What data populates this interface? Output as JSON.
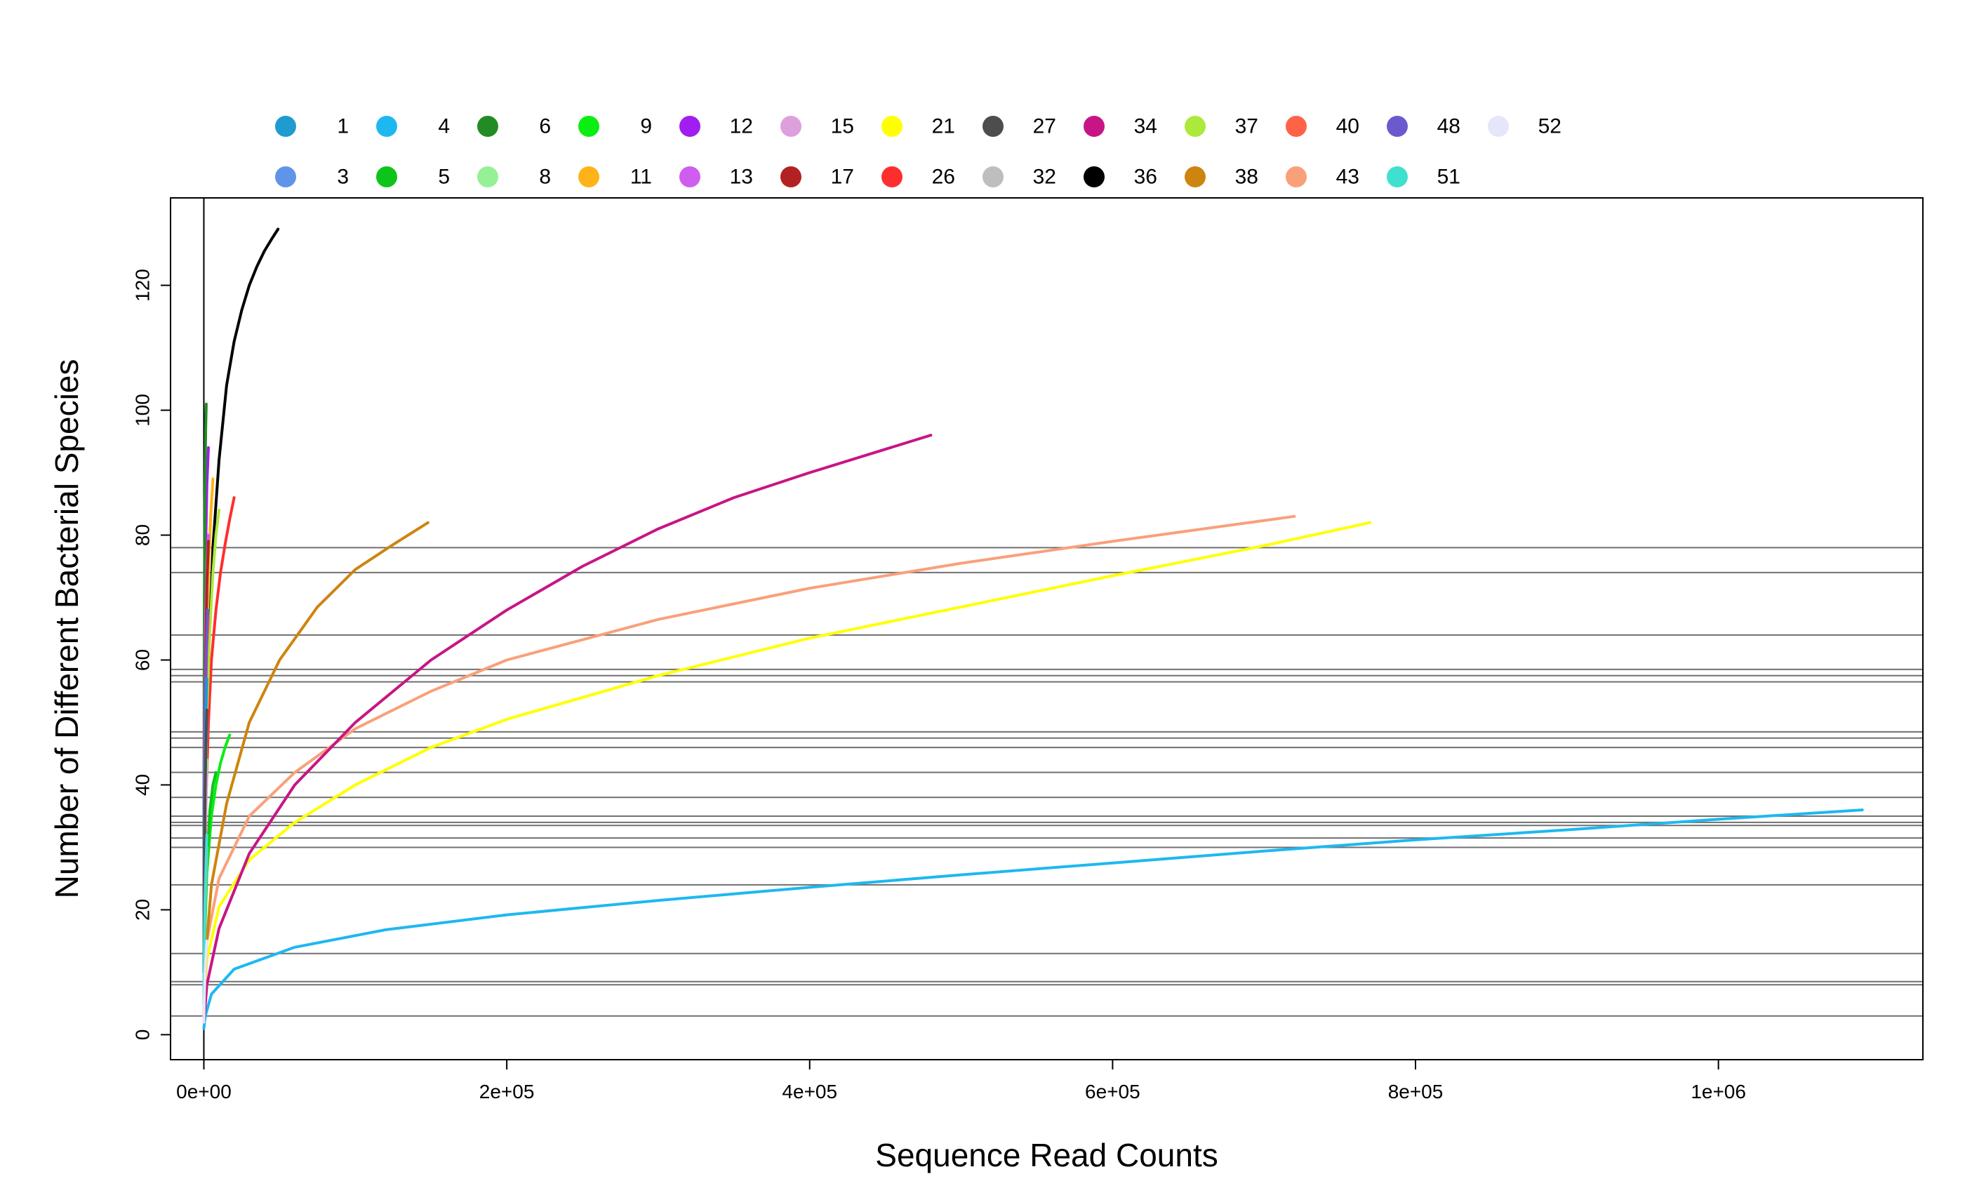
{
  "chart_data": {
    "type": "line",
    "title": "",
    "xlabel": "Sequence Read Counts",
    "ylabel": "Number of Different Bacterial Species",
    "xlim": [
      -22000,
      1135000
    ],
    "ylim": [
      -4,
      134
    ],
    "x_ticks": [
      {
        "value": 0,
        "label": "0e+00"
      },
      {
        "value": 200000,
        "label": "2e+05"
      },
      {
        "value": 400000,
        "label": "4e+05"
      },
      {
        "value": 600000,
        "label": "6e+05"
      },
      {
        "value": 800000,
        "label": "8e+05"
      },
      {
        "value": 1000000,
        "label": "1e+06"
      }
    ],
    "y_ticks": [
      {
        "value": 0,
        "label": "0"
      },
      {
        "value": 20,
        "label": "20"
      },
      {
        "value": 40,
        "label": "40"
      },
      {
        "value": 60,
        "label": "60"
      },
      {
        "value": 80,
        "label": "80"
      },
      {
        "value": 100,
        "label": "100"
      },
      {
        "value": 120,
        "label": "120"
      }
    ],
    "vertical_reference_line": 0,
    "horizontal_reference_lines": [
      3,
      8,
      8.5,
      13,
      24,
      30,
      31.5,
      33.5,
      34,
      35,
      38,
      42,
      46,
      47.5,
      48.5,
      56.5,
      57.5,
      58.5,
      64,
      74,
      78
    ],
    "legend": {
      "placement": "top",
      "rows": 2,
      "entries": [
        {
          "label": "1",
          "color": "#1F9BCF"
        },
        {
          "label": "3",
          "color": "#5F95E8"
        },
        {
          "label": "4",
          "color": "#1EB8F0"
        },
        {
          "label": "5",
          "color": "#0EC41A"
        },
        {
          "label": "6",
          "color": "#238B23"
        },
        {
          "label": "8",
          "color": "#96F196"
        },
        {
          "label": "9",
          "color": "#0AEE12"
        },
        {
          "label": "11",
          "color": "#FFB21A"
        },
        {
          "label": "12",
          "color": "#A01EF0"
        },
        {
          "label": "13",
          "color": "#CF5DF0"
        },
        {
          "label": "15",
          "color": "#DDA0DD"
        },
        {
          "label": "17",
          "color": "#B22222"
        },
        {
          "label": "21",
          "color": "#FFFF00"
        },
        {
          "label": "26",
          "color": "#FF2E2E"
        },
        {
          "label": "27",
          "color": "#4D4D4D"
        },
        {
          "label": "32",
          "color": "#BEBEBE"
        },
        {
          "label": "34",
          "color": "#C71585"
        },
        {
          "label": "36",
          "color": "#000000"
        },
        {
          "label": "37",
          "color": "#ADE93A"
        },
        {
          "label": "38",
          "color": "#CD850F"
        },
        {
          "label": "40",
          "color": "#FF6347"
        },
        {
          "label": "43",
          "color": "#F9A07A"
        },
        {
          "label": "48",
          "color": "#6A5ACD"
        },
        {
          "label": "51",
          "color": "#40E0D0"
        },
        {
          "label": "52",
          "color": "#E6E6FA"
        }
      ]
    },
    "series": [
      {
        "color": "#1EB8F0",
        "x": [
          0,
          1000,
          5000,
          20000,
          60000,
          120000,
          200000,
          300000,
          400000,
          500000,
          600000,
          700000,
          800000,
          900000,
          1000000,
          1095000
        ],
        "y": [
          1,
          3,
          6.5,
          10.5,
          14,
          16.8,
          19.2,
          21.5,
          23.6,
          25.6,
          27.5,
          29.4,
          31.2,
          32.8,
          34.5,
          36
        ]
      },
      {
        "color": "#FFFF00",
        "x": [
          0,
          2000,
          10000,
          30000,
          60000,
          100000,
          150000,
          200000,
          300000,
          400000,
          500000,
          600000,
          700000,
          770000
        ],
        "y": [
          5,
          12,
          20.5,
          28,
          34,
          40,
          46,
          50.5,
          57.5,
          63.5,
          68.5,
          73.5,
          78.3,
          82
        ]
      },
      {
        "color": "#F9A07A",
        "x": [
          0,
          2000,
          10000,
          30000,
          60000,
          100000,
          150000,
          200000,
          300000,
          400000,
          500000,
          600000,
          720000
        ],
        "y": [
          5,
          15,
          25,
          35,
          42,
          49,
          55,
          60,
          66.5,
          71.5,
          75.5,
          79,
          83
        ]
      },
      {
        "color": "#C71585",
        "x": [
          0,
          2000,
          10000,
          30000,
          60000,
          100000,
          150000,
          200000,
          250000,
          300000,
          350000,
          400000,
          480000
        ],
        "y": [
          2,
          8,
          17,
          29,
          40,
          50,
          60,
          68,
          75,
          81,
          86,
          90,
          96
        ]
      },
      {
        "color": "#CD850F",
        "x": [
          0,
          1000,
          5000,
          15000,
          30000,
          50000,
          75000,
          100000,
          125000,
          148000
        ],
        "y": [
          3,
          12,
          24,
          37,
          50,
          60,
          68.5,
          74.5,
          78.5,
          82
        ]
      },
      {
        "color": "#000000",
        "x": [
          0,
          1000,
          3000,
          6000,
          10000,
          15000,
          20000,
          25000,
          30000,
          35000,
          40000,
          45000,
          49000
        ],
        "y": [
          10,
          40,
          60,
          78,
          92,
          104,
          111,
          116,
          120,
          123,
          125.5,
          127.5,
          129
        ]
      },
      {
        "color": "#FF2E2E",
        "x": [
          0,
          500,
          1500,
          3000,
          5000,
          8000,
          11000,
          14000,
          17000,
          20000
        ],
        "y": [
          10,
          24,
          38,
          50,
          60,
          68,
          74,
          78.5,
          82.5,
          86
        ]
      },
      {
        "color": "#0AEE12",
        "x": [
          0,
          500,
          2000,
          5000,
          8000,
          11000,
          14000,
          17000
        ],
        "y": [
          5,
          15,
          26,
          35,
          40,
          43.5,
          46,
          48
        ]
      },
      {
        "color": "#0EC41A",
        "x": [
          0,
          500,
          2000,
          4000,
          6000,
          8000
        ],
        "y": [
          5,
          16,
          28,
          36,
          40,
          42
        ]
      },
      {
        "color": "#ADE93A",
        "x": [
          0,
          500,
          2000,
          4000,
          6000,
          8000,
          10000
        ],
        "y": [
          10,
          30,
          52,
          65,
          74,
          80,
          84
        ]
      },
      {
        "color": "#FFB21A",
        "x": [
          0,
          500,
          1500,
          3000,
          4500,
          6000
        ],
        "y": [
          10,
          35,
          58,
          74,
          83,
          89
        ]
      },
      {
        "color": "#A01EF0",
        "x": [
          0,
          300,
          1000,
          2000,
          3000
        ],
        "y": [
          20,
          50,
          75,
          88,
          94
        ]
      },
      {
        "color": "#238B23",
        "x": [
          0,
          200,
          600,
          1200,
          1600
        ],
        "y": [
          30,
          60,
          85,
          97,
          101
        ]
      },
      {
        "color": "#CF5DF0",
        "x": [
          0,
          300,
          1000,
          2000,
          3000
        ],
        "y": [
          20,
          45,
          65,
          75,
          80
        ]
      },
      {
        "color": "#B22222",
        "x": [
          0,
          300,
          1000,
          2000,
          3000
        ],
        "y": [
          15,
          35,
          58,
          72,
          79
        ]
      },
      {
        "color": "#FF6347",
        "x": [
          0,
          300,
          1000,
          2000,
          3000
        ],
        "y": [
          12,
          30,
          50,
          62,
          67
        ]
      },
      {
        "color": "#6A5ACD",
        "x": [
          0,
          300,
          1000,
          2000,
          2500
        ],
        "y": [
          15,
          35,
          55,
          64,
          68
        ]
      },
      {
        "color": "#1F9BCF",
        "x": [
          0,
          300,
          800,
          1500,
          2000
        ],
        "y": [
          10,
          28,
          42,
          52,
          57
        ]
      },
      {
        "color": "#5F95E8",
        "x": [
          0,
          300,
          800,
          1500,
          2000
        ],
        "y": [
          10,
          25,
          38,
          46,
          50
        ]
      },
      {
        "color": "#96F196",
        "x": [
          0,
          300,
          800,
          1500,
          2000
        ],
        "y": [
          10,
          22,
          33,
          40,
          44
        ]
      },
      {
        "color": "#DDA0DD",
        "x": [
          0,
          300,
          800,
          1500,
          2000
        ],
        "y": [
          5,
          18,
          30,
          38,
          42
        ]
      },
      {
        "color": "#4D4D4D",
        "x": [
          0,
          300,
          800,
          1500,
          2000
        ],
        "y": [
          10,
          25,
          38,
          48,
          52
        ]
      },
      {
        "color": "#BEBEBE",
        "x": [
          0,
          300,
          800,
          1500,
          2000
        ],
        "y": [
          5,
          12,
          20,
          26,
          30
        ]
      },
      {
        "color": "#40E0D0",
        "x": [
          0,
          300,
          800,
          1500,
          2000
        ],
        "y": [
          5,
          14,
          22,
          28,
          32
        ]
      },
      {
        "color": "#E6E6FA",
        "x": [
          0,
          300,
          800,
          1500,
          2000
        ],
        "y": [
          2,
          6,
          10,
          13,
          15
        ]
      }
    ]
  }
}
